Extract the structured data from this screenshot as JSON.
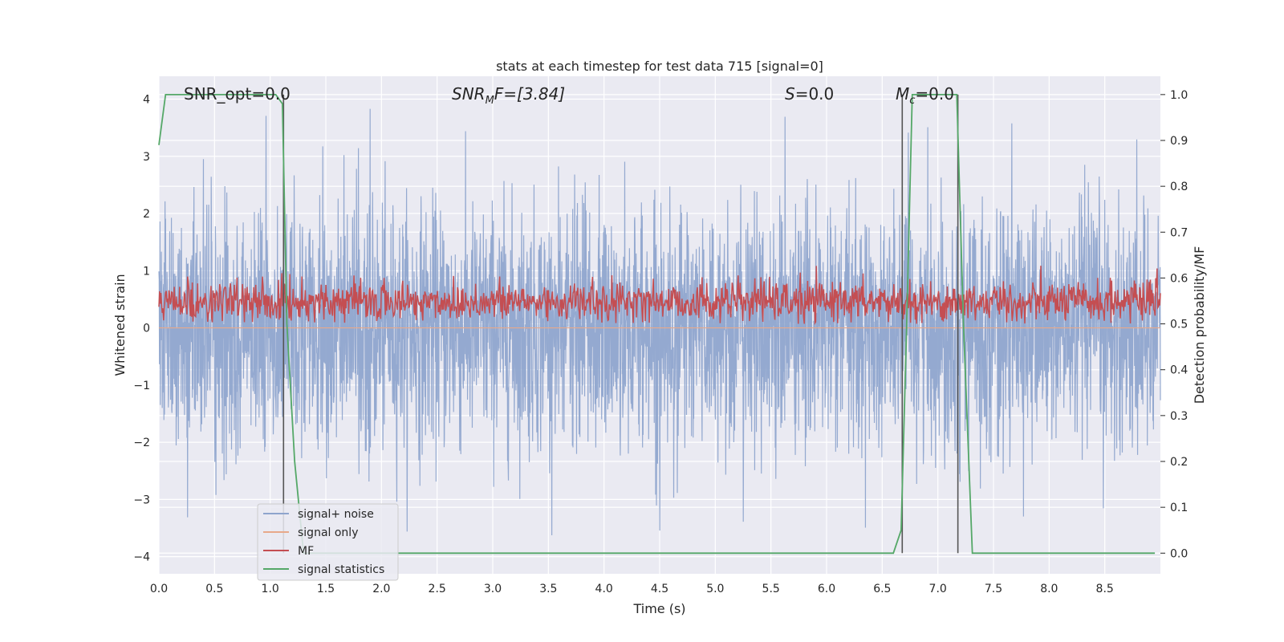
{
  "chart_data": {
    "type": "line",
    "title": "stats at each timestep for test data 715 [signal=0]",
    "xlabel": "Time (s)",
    "ylabel": "Whitened strain",
    "y2label": "Detection probability/MF",
    "xlim": [
      0,
      9.0
    ],
    "ylim": [
      -4.3,
      4.4
    ],
    "y2lim": [
      -0.045,
      1.04
    ],
    "xticks": [
      "0.0",
      "0.5",
      "1.0",
      "1.5",
      "2.0",
      "2.5",
      "3.0",
      "3.5",
      "4.0",
      "4.5",
      "5.0",
      "5.5",
      "6.0",
      "6.5",
      "7.0",
      "7.5",
      "8.0",
      "8.5"
    ],
    "yticks": [
      "4",
      "3",
      "2",
      "1",
      "0",
      "−1",
      "−2",
      "−3",
      "−4"
    ],
    "y2ticks": [
      "1.0",
      "0.9",
      "0.8",
      "0.7",
      "0.6",
      "0.5",
      "0.4",
      "0.3",
      "0.2",
      "0.1",
      "0.0"
    ],
    "grid": true,
    "legend_position": "lower-left",
    "annotations": {
      "snr_opt": "SNR_opt=0.0",
      "snr_mf_prefix": "SNR",
      "snr_mf_sub": "M",
      "snr_mf_suffix": "F=[3.84]",
      "s_name": "S",
      "s_value": "=0.0",
      "mc_name": "M",
      "mc_sub": "c",
      "mc_value": "=0.0"
    },
    "series": [
      {
        "name": "signal+ noise",
        "color": "#8fa5cd",
        "axis": "left",
        "amplitude_typical": [
          -2.0,
          2.0
        ],
        "extremes": [
          -3.75,
          3.85
        ]
      },
      {
        "name": "signal only",
        "color": "#e8a98a",
        "axis": "left",
        "values_constant": 0.0
      },
      {
        "name": "MF",
        "color": "#c44e52",
        "axis": "right",
        "range": [
          0.5,
          0.62
        ]
      },
      {
        "name": "signal statistics",
        "color": "#55a868",
        "axis": "right",
        "x": [
          0.0,
          0.06,
          1.05,
          1.11,
          1.15,
          1.22,
          1.3,
          1.85,
          6.6,
          6.67,
          6.72,
          6.77,
          7.17,
          7.23,
          7.31,
          8.95
        ],
        "y": [
          0.89,
          1.0,
          1.0,
          0.98,
          0.5,
          0.2,
          0.0,
          0.0,
          0.0,
          0.05,
          0.5,
          1.0,
          1.0,
          0.5,
          0.0,
          0.0
        ]
      }
    ],
    "vertical_lines": [
      1.12,
      6.68,
      7.18
    ],
    "vertical_line_color": "#555555"
  }
}
